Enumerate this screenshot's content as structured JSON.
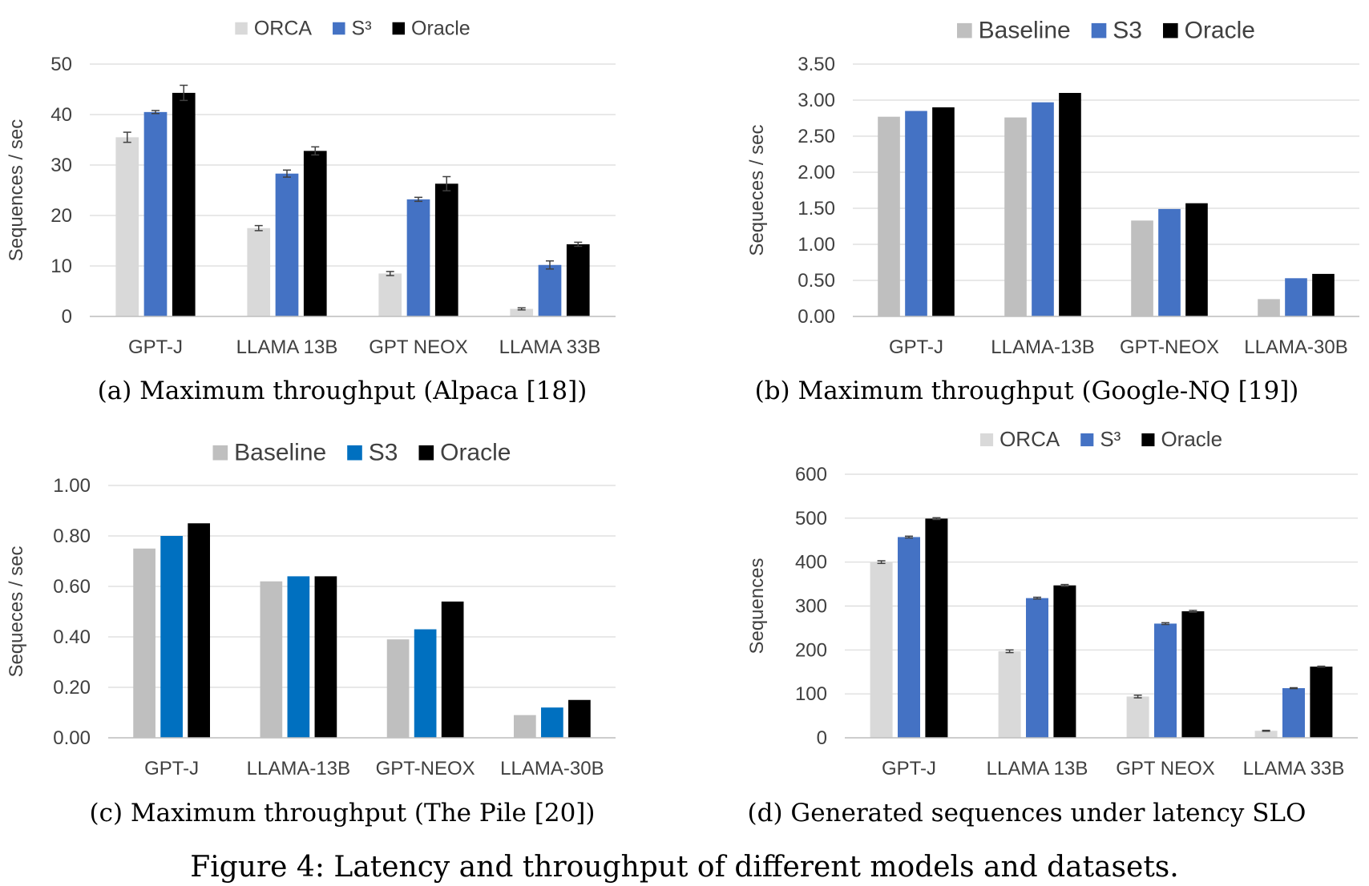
{
  "figure_caption": "Figure 4: Latency and throughput of different models and datasets.",
  "chart_data": [
    {
      "type": "bar",
      "caption": "(a) Maximum throughput (Alpaca [18])",
      "categories": [
        "GPT-J",
        "LLAMA 13B",
        "GPT NEOX",
        "LLAMA 33B"
      ],
      "series": [
        {
          "name": "ORCA",
          "color": "#d9d9d9",
          "values": [
            35.5,
            17.5,
            8.5,
            1.5
          ],
          "errors": [
            1.0,
            0.5,
            0.4,
            0.2
          ]
        },
        {
          "name": "S³",
          "color": "#4472c4",
          "values": [
            40.5,
            28.3,
            23.2,
            10.2
          ],
          "errors": [
            0.3,
            0.7,
            0.4,
            0.8
          ]
        },
        {
          "name": "Oracle",
          "color": "#000000",
          "values": [
            44.3,
            32.8,
            26.3,
            14.3
          ],
          "errors": [
            1.5,
            0.8,
            1.4,
            0.4
          ]
        }
      ],
      "ylabel": "Sequences / sec",
      "ylim": [
        0,
        50
      ],
      "yticks": [
        "0",
        "10",
        "20",
        "30",
        "40",
        "50"
      ],
      "grid": true,
      "legend": "top"
    },
    {
      "type": "bar",
      "caption": "(b) Maximum throughput (Google-NQ [19])",
      "categories": [
        "GPT-J",
        "LLAMA-13B",
        "GPT-NEOX",
        "LLAMA-30B"
      ],
      "series": [
        {
          "name": "Baseline",
          "color": "#bfbfbf",
          "values": [
            2.77,
            2.76,
            1.33,
            0.24
          ]
        },
        {
          "name": "S3",
          "color": "#4472c4",
          "values": [
            2.85,
            2.97,
            1.49,
            0.53
          ]
        },
        {
          "name": "Oracle",
          "color": "#000000",
          "values": [
            2.9,
            3.1,
            1.57,
            0.59
          ]
        }
      ],
      "ylabel": "Sequeces / sec",
      "ylim": [
        0,
        3.5
      ],
      "yticks": [
        "0.00",
        "0.50",
        "1.00",
        "1.50",
        "2.00",
        "2.50",
        "3.00",
        "3.50"
      ],
      "grid": true,
      "legend": "top"
    },
    {
      "type": "bar",
      "caption": "(c) Maximum throughput (The Pile [20])",
      "categories": [
        "GPT-J",
        "LLAMA-13B",
        "GPT-NEOX",
        "LLAMA-30B"
      ],
      "series": [
        {
          "name": "Baseline",
          "color": "#bfbfbf",
          "values": [
            0.75,
            0.62,
            0.39,
            0.09
          ]
        },
        {
          "name": "S3",
          "color": "#0070c0",
          "values": [
            0.8,
            0.64,
            0.43,
            0.12
          ]
        },
        {
          "name": "Oracle",
          "color": "#000000",
          "values": [
            0.85,
            0.64,
            0.54,
            0.15
          ]
        }
      ],
      "ylabel": "Sequeces / sec",
      "ylim": [
        0,
        1.0
      ],
      "yticks": [
        "0.00",
        "0.20",
        "0.40",
        "0.60",
        "0.80",
        "1.00"
      ],
      "grid": true,
      "legend": "top"
    },
    {
      "type": "bar",
      "caption": "(d) Generated sequences under latency SLO",
      "categories": [
        "GPT-J",
        "LLAMA 13B",
        "GPT NEOX",
        "LLAMA 33B"
      ],
      "series": [
        {
          "name": "ORCA",
          "color": "#d9d9d9",
          "values": [
            400,
            197,
            94,
            16
          ],
          "errors": [
            3,
            3,
            3,
            1
          ]
        },
        {
          "name": "S³",
          "color": "#4472c4",
          "values": [
            457,
            318,
            260,
            113
          ],
          "errors": [
            2,
            2,
            2,
            1
          ]
        },
        {
          "name": "Oracle",
          "color": "#000000",
          "values": [
            499,
            347,
            288,
            162
          ],
          "errors": [
            2,
            2,
            2,
            1
          ]
        }
      ],
      "ylabel": "Sequences",
      "ylim": [
        0,
        600
      ],
      "yticks": [
        "0",
        "100",
        "200",
        "300",
        "400",
        "500",
        "600"
      ],
      "grid": true,
      "legend": "top"
    }
  ]
}
